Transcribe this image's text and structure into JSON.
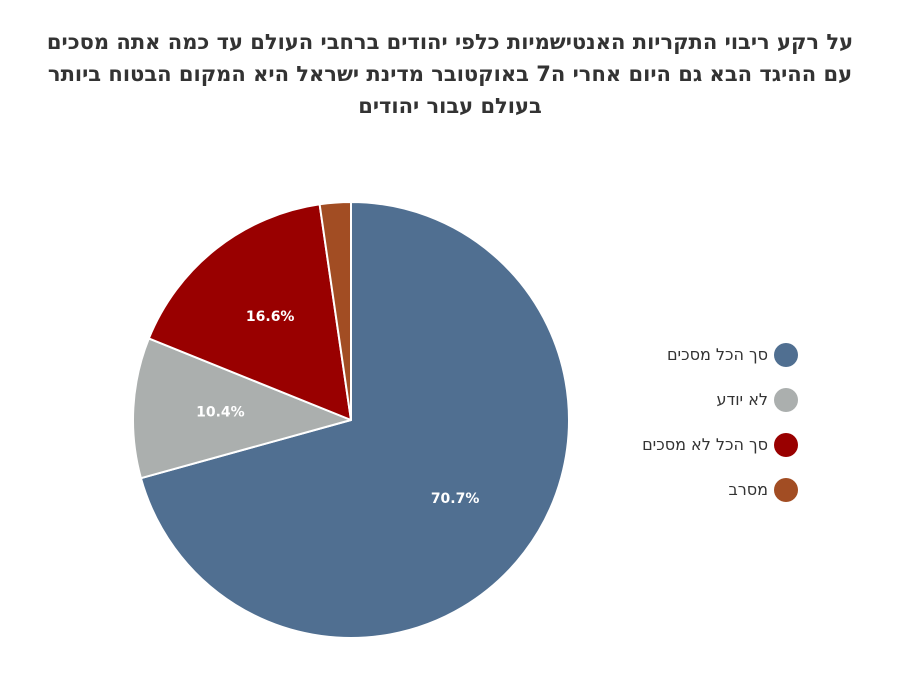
{
  "chart_data": {
    "type": "pie",
    "title_lines": [
      "על רקע ריבוי התקריות האנטישמיות כלפי יהודים ברחבי העולם עד כמה אתה מסכים",
      "עם ההיגד הבא גם היום אחרי ה7 באוקטובר מדינת ישראל היא המקום הבטוח ביותר",
      "בעולם עבור יהודים"
    ],
    "legend_position": "right",
    "slices": [
      {
        "label": "סך הכל מסכים",
        "value": 70.7,
        "value_label": "70.7%",
        "color": "#506f91"
      },
      {
        "label": "לא יודע",
        "value": 10.4,
        "value_label": "10.4%",
        "color": "#abafae"
      },
      {
        "label": "סך הכל לא מסכים",
        "value": 16.6,
        "value_label": "16.6%",
        "color": "#990000"
      },
      {
        "label": "מסרב",
        "value": 2.3,
        "value_label": "",
        "color": "#a24d23"
      }
    ]
  }
}
